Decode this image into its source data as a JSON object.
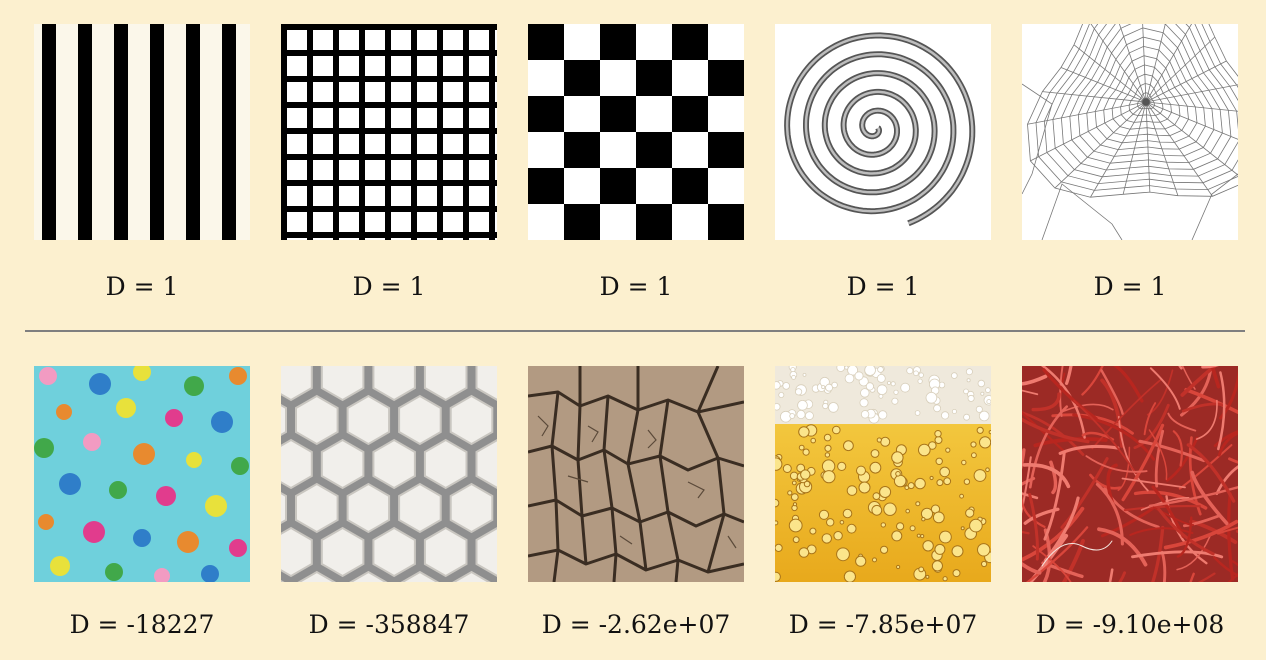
{
  "top_row": {
    "items": [
      {
        "pattern": "stripes-texture",
        "label": "D = 1"
      },
      {
        "pattern": "grid-texture",
        "label": "D = 1"
      },
      {
        "pattern": "checkerboard-texture",
        "label": "D = 1"
      },
      {
        "pattern": "spiral-texture",
        "label": "D = 1"
      },
      {
        "pattern": "spiderweb-texture",
        "label": "D = 1"
      }
    ]
  },
  "bottom_row": {
    "items": [
      {
        "pattern": "polka-dots-texture",
        "label": "D = -18227"
      },
      {
        "pattern": "honeycomb-texture",
        "label": "D = -358847"
      },
      {
        "pattern": "cracked-earth-texture",
        "label": "D = -2.62e+07"
      },
      {
        "pattern": "beer-bubbles-texture",
        "label": "D = -7.85e+07"
      },
      {
        "pattern": "red-fibers-texture",
        "label": "D = -9.10e+08"
      }
    ]
  },
  "colors": {
    "background": "#fcf0cf",
    "divider": "#7f7f7f",
    "dots_background": "#6fd0dc",
    "fibers": "#c8362e",
    "beer": "#f2c232"
  }
}
